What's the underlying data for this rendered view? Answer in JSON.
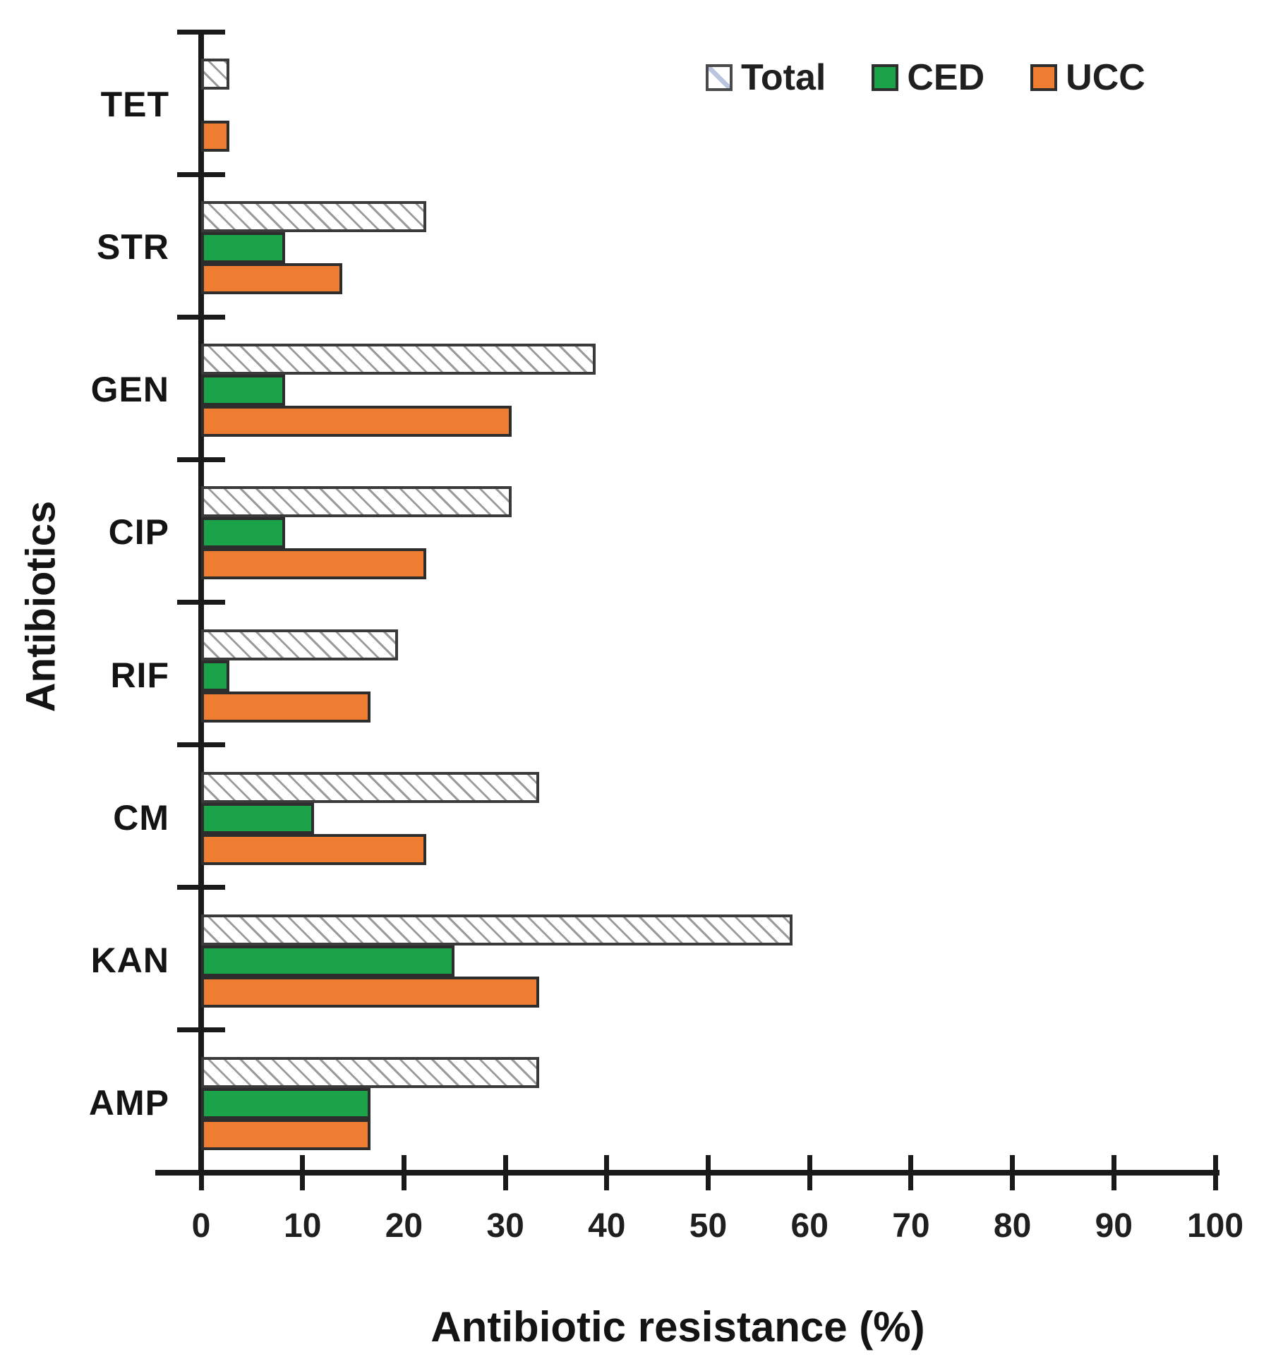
{
  "figure": {
    "xlabel": "Antibiotic resistance (%)",
    "ylabel": "Antibiotics"
  },
  "legend": [
    {
      "label": "Total",
      "swatch": "hatched-white"
    },
    {
      "label": "CED",
      "swatch": "green"
    },
    {
      "label": "UCC",
      "swatch": "orange"
    }
  ],
  "colors": {
    "ced_green": "#1ba34a",
    "ucc_orange": "#ee7d31",
    "hatch_line_gray": "#9b9b9b",
    "bar_border": "#2d2d2d",
    "axis_black": "#1a1a1a"
  },
  "chart_data": {
    "type": "bar",
    "orientation": "horizontal",
    "title": "",
    "xlabel": "Antibiotic resistance (%)",
    "ylabel": "Antibiotics",
    "xlim": [
      0,
      100
    ],
    "xticks": [
      0,
      10,
      20,
      30,
      40,
      50,
      60,
      70,
      80,
      90,
      100
    ],
    "grid": false,
    "legend_position": "top-right",
    "categories_top_to_bottom": [
      "TET",
      "STR",
      "GEN",
      "CIP",
      "RIF",
      "CM",
      "KAN",
      "AMP"
    ],
    "series": [
      {
        "name": "Total",
        "style": "hatched",
        "values": [
          2.8,
          22.2,
          38.9,
          30.6,
          19.4,
          33.3,
          58.3,
          33.3
        ]
      },
      {
        "name": "CED",
        "style": "green",
        "values": [
          0,
          8.3,
          8.3,
          8.3,
          2.8,
          11.1,
          25.0,
          16.7
        ]
      },
      {
        "name": "UCC",
        "style": "orange",
        "values": [
          2.8,
          13.9,
          30.6,
          22.2,
          16.7,
          22.2,
          33.3,
          16.7
        ]
      }
    ]
  }
}
